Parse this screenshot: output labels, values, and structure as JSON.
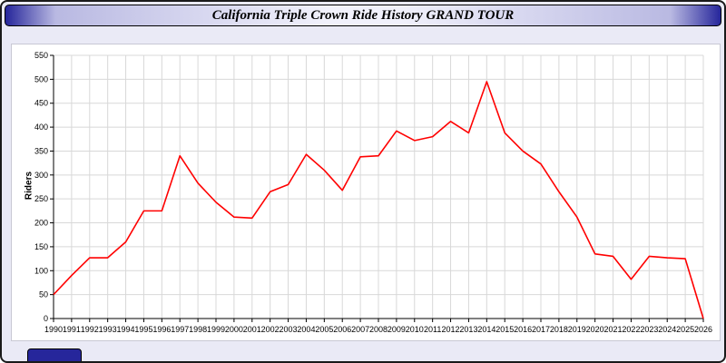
{
  "page": {
    "title": "California Triple Crown Ride History GRAND TOUR",
    "background_color": "#eaeaf6",
    "title_bar_edge_color": "#26269b",
    "footer_badge_color": "#26269b"
  },
  "chart_data": {
    "type": "line",
    "title": "California Triple Crown Ride History GRAND TOUR",
    "xlabel": "",
    "ylabel": "Riders",
    "x": [
      1990,
      1991,
      1992,
      1993,
      1994,
      1995,
      1996,
      1997,
      1998,
      1999,
      2000,
      2001,
      2002,
      2003,
      2004,
      2005,
      2006,
      2007,
      2008,
      2009,
      2010,
      2011,
      2012,
      2013,
      2014,
      2015,
      2016,
      2017,
      2018,
      2019,
      2020,
      2021,
      2022,
      2023,
      2024,
      2025,
      2026
    ],
    "series": [
      {
        "name": "Riders",
        "color": "#ff0000",
        "values": [
          50,
          90,
          127,
          127,
          160,
          225,
          225,
          340,
          283,
          243,
          212,
          210,
          265,
          280,
          343,
          310,
          268,
          338,
          340,
          392,
          372,
          380,
          412,
          388,
          495,
          388,
          350,
          323,
          265,
          212,
          135,
          130,
          82,
          130,
          127,
          125,
          0
        ]
      }
    ],
    "ylim": [
      0,
      550
    ],
    "ytick_step": 50,
    "grid": true,
    "grid_color": "#d8d8d8",
    "legend": "none"
  }
}
